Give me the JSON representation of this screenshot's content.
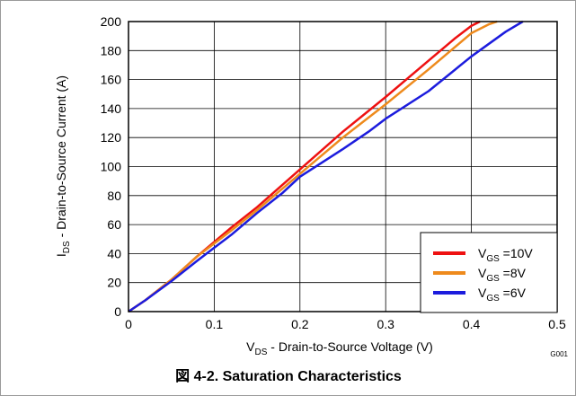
{
  "chart_data": {
    "type": "line",
    "caption": "図 4-2. Saturation Characteristics",
    "figure_id": "G001",
    "xlabel": {
      "prefix": "V",
      "sub": "DS",
      "rest": " - Drain-to-Source Voltage (V)"
    },
    "ylabel": {
      "prefix": "I",
      "sub": "DS",
      "rest": " - Drain-to-Source Current (A)"
    },
    "xlim": [
      0,
      0.5
    ],
    "ylim": [
      0,
      200
    ],
    "xticks": [
      "0",
      "0.1",
      "0.2",
      "0.3",
      "0.4",
      "0.5"
    ],
    "yticks": [
      "0",
      "20",
      "40",
      "60",
      "80",
      "100",
      "120",
      "140",
      "160",
      "180",
      "200"
    ],
    "grid": true,
    "legend_position": "bottom-right",
    "series": [
      {
        "name": "V_GS = 10V",
        "label": {
          "prefix": "V",
          "sub": "GS",
          "rest": " =10V"
        },
        "color": "#ee1111",
        "points": [
          [
            0,
            0
          ],
          [
            0.02,
            8
          ],
          [
            0.05,
            22
          ],
          [
            0.08,
            38
          ],
          [
            0.1,
            48
          ],
          [
            0.12,
            58
          ],
          [
            0.15,
            72
          ],
          [
            0.2,
            98
          ],
          [
            0.25,
            124
          ],
          [
            0.3,
            148
          ],
          [
            0.35,
            173
          ],
          [
            0.38,
            188
          ],
          [
            0.4,
            197
          ],
          [
            0.41,
            200
          ]
        ]
      },
      {
        "name": "V_GS = 8V",
        "label": {
          "prefix": "V",
          "sub": "GS",
          "rest": " =8V"
        },
        "color": "#ee8a1c",
        "points": [
          [
            0,
            0
          ],
          [
            0.02,
            8
          ],
          [
            0.05,
            22
          ],
          [
            0.08,
            38
          ],
          [
            0.1,
            47
          ],
          [
            0.12,
            56
          ],
          [
            0.15,
            70
          ],
          [
            0.2,
            95
          ],
          [
            0.25,
            120
          ],
          [
            0.3,
            143
          ],
          [
            0.35,
            167
          ],
          [
            0.38,
            182
          ],
          [
            0.4,
            192
          ],
          [
            0.42,
            198
          ],
          [
            0.43,
            200
          ]
        ]
      },
      {
        "name": "V_GS = 6V",
        "label": {
          "prefix": "V",
          "sub": "GS",
          "rest": " =6V"
        },
        "color": "#1c1cdd",
        "points": [
          [
            0,
            0
          ],
          [
            0.02,
            8
          ],
          [
            0.05,
            21
          ],
          [
            0.08,
            35
          ],
          [
            0.1,
            44
          ],
          [
            0.12,
            53
          ],
          [
            0.15,
            68
          ],
          [
            0.18,
            82
          ],
          [
            0.2,
            93
          ],
          [
            0.25,
            112
          ],
          [
            0.28,
            124
          ],
          [
            0.3,
            133
          ],
          [
            0.35,
            152
          ],
          [
            0.4,
            176
          ],
          [
            0.44,
            193
          ],
          [
            0.46,
            200
          ]
        ]
      }
    ]
  }
}
